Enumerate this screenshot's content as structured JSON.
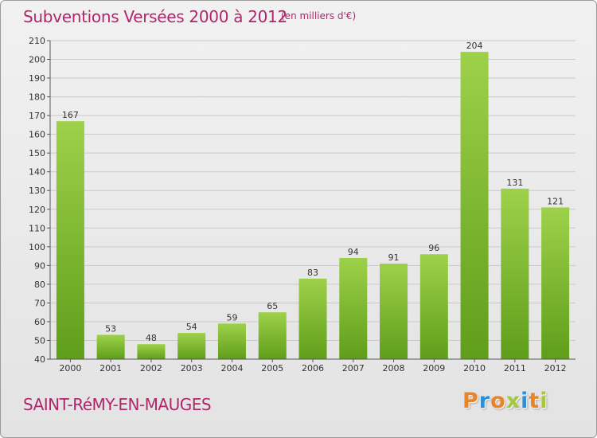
{
  "header": {
    "title": "Subventions Versées 2000 à 2012",
    "unit": "(en milliers d'€)"
  },
  "footer": {
    "commune": "SAINT-RéMY-EN-MAUGES",
    "logo_text": "Proxiti",
    "logo_colors": [
      "#e8842a",
      "#2f8fd6",
      "#e8842a",
      "#a6c93a",
      "#2f8fd6",
      "#e8842a",
      "#a6c93a"
    ]
  },
  "colors": {
    "bar_light": "#9ed14a",
    "bar_dark": "#5f9e1a",
    "accent": "#b0266a"
  },
  "chart_data": {
    "type": "bar",
    "categories": [
      "2000",
      "2001",
      "2002",
      "2003",
      "2004",
      "2005",
      "2006",
      "2007",
      "2008",
      "2009",
      "2010",
      "2011",
      "2012"
    ],
    "values": [
      167,
      53,
      48,
      54,
      59,
      65,
      83,
      94,
      91,
      96,
      204,
      131,
      121
    ],
    "ylim": [
      40,
      210
    ],
    "yticks": [
      40,
      50,
      60,
      70,
      80,
      90,
      100,
      110,
      120,
      130,
      140,
      150,
      160,
      170,
      180,
      190,
      200,
      210
    ],
    "grid": true
  }
}
